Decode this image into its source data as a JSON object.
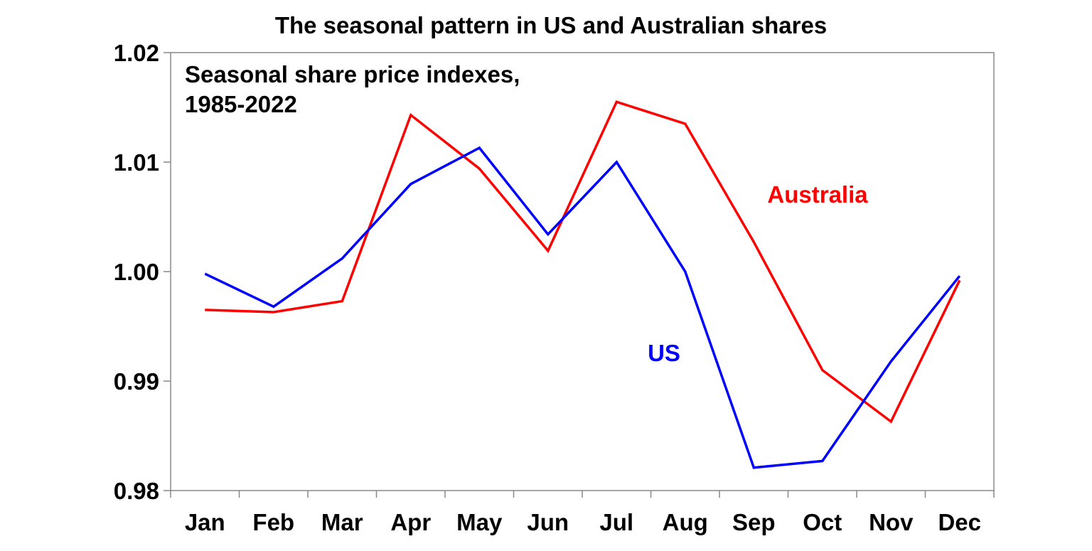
{
  "chart_data": {
    "type": "line",
    "title": "The seasonal pattern in US and Australian shares",
    "subtitle_lines": [
      "Seasonal share price indexes,",
      "1985-2022"
    ],
    "xlabel": "",
    "ylabel": "",
    "categories": [
      "Jan",
      "Feb",
      "Mar",
      "Apr",
      "May",
      "Jun",
      "Jul",
      "Aug",
      "Sep",
      "Oct",
      "Nov",
      "Dec"
    ],
    "ylim": [
      0.98,
      1.02
    ],
    "yticks": [
      0.98,
      0.99,
      1.0,
      1.01,
      1.02
    ],
    "ytick_labels": [
      "0.98",
      "0.99",
      "1.00",
      "1.01",
      "1.02"
    ],
    "grid": false,
    "legend": "none",
    "series": [
      {
        "name": "Australia",
        "color": "#ff0000",
        "values": [
          0.9965,
          0.9963,
          0.9973,
          1.0143,
          1.0094,
          1.0019,
          1.0155,
          1.0135,
          1.0027,
          0.991,
          0.9863,
          0.9992
        ]
      },
      {
        "name": "US",
        "color": "#0000ff",
        "values": [
          0.9998,
          0.9968,
          1.0012,
          1.008,
          1.0113,
          1.0034,
          1.01,
          1.0,
          0.9821,
          0.9827,
          0.9918,
          0.9996
        ]
      }
    ]
  }
}
